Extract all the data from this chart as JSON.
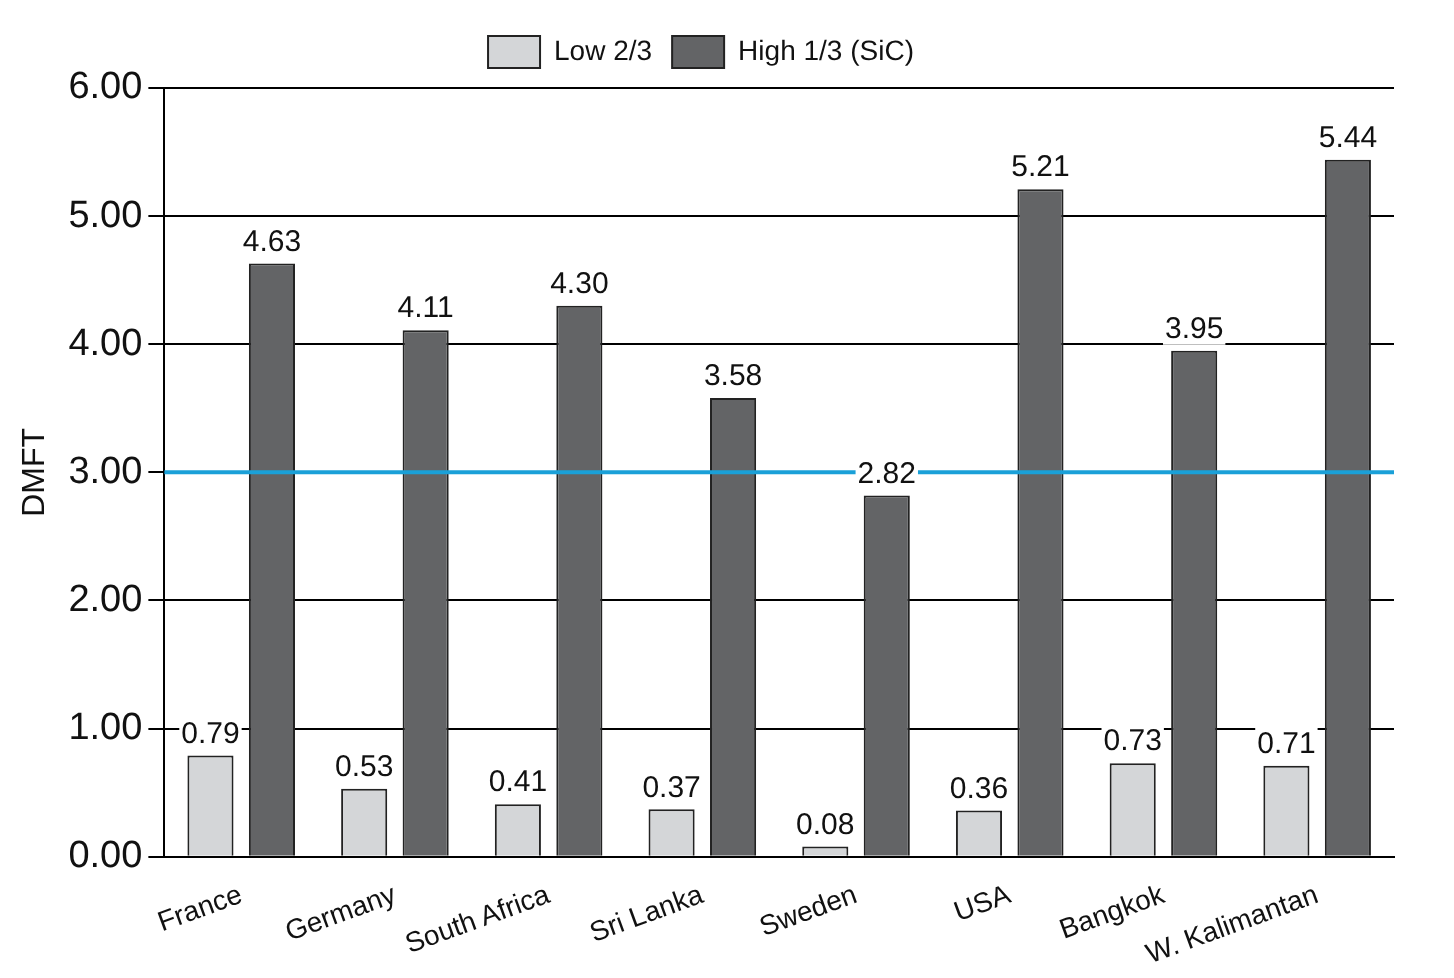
{
  "chart_data": {
    "type": "bar",
    "ylabel": "DMFT",
    "categories": [
      "France",
      "Germany",
      "South Africa",
      "Sri Lanka",
      "Sweden",
      "USA",
      "Bangkok",
      "W. Kalimantan"
    ],
    "series": [
      {
        "name": "Low 2/3",
        "color": "#d4d6d8",
        "values": [
          0.79,
          0.53,
          0.41,
          0.37,
          0.08,
          0.36,
          0.73,
          0.71
        ],
        "value_labels": [
          "0.79",
          "0.53",
          "0.41",
          "0.37",
          "0.08",
          "0.36",
          "0.73",
          "0.71"
        ]
      },
      {
        "name": "High 1/3 (SiC)",
        "color": "#636466",
        "values": [
          4.63,
          4.11,
          4.3,
          3.58,
          2.82,
          5.21,
          3.95,
          5.44
        ],
        "value_labels": [
          "4.63",
          "4.11",
          "4.30",
          "3.58",
          "2.82",
          "5.21",
          "3.95",
          "5.44"
        ]
      }
    ],
    "ylim": [
      0,
      6
    ],
    "yticks": [
      {
        "value": 0,
        "label": "0.00"
      },
      {
        "value": 1,
        "label": "1.00"
      },
      {
        "value": 2,
        "label": "2.00"
      },
      {
        "value": 3,
        "label": "3.00"
      },
      {
        "value": 4,
        "label": "4.00"
      },
      {
        "value": 5,
        "label": "5.00"
      },
      {
        "value": 6,
        "label": "6.00"
      }
    ],
    "grid": "y",
    "legend": "top",
    "ref_lines": [
      {
        "axis": "y",
        "value": 3,
        "color": "#1aa0d8"
      }
    ]
  }
}
